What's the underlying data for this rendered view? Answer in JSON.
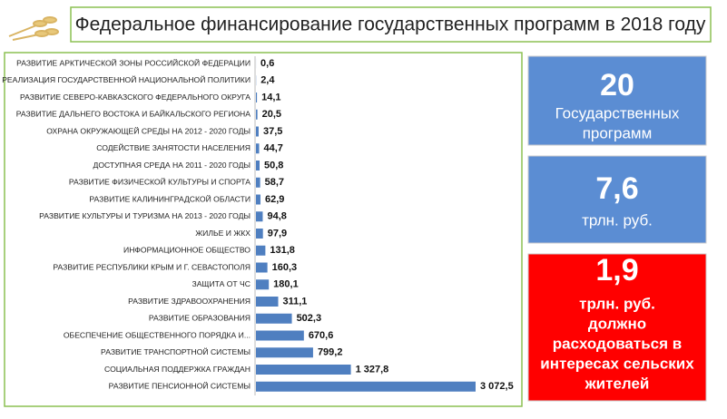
{
  "header": {
    "title": "Федеральное финансирование государственных программ в 2018 году"
  },
  "chart_data": {
    "type": "bar",
    "orientation": "horizontal",
    "color": "#4f7fc0",
    "categories": [
      "РАЗВИТИЕ АРКТИЧЕСКОЙ ЗОНЫ РОССИЙСКОЙ ФЕДЕРАЦИИ",
      "РЕАЛИЗАЦИЯ ГОСУДАРСТВЕННОЙ НАЦИОНАЛЬНОЙ ПОЛИТИКИ",
      "РАЗВИТИЕ СЕВЕРО-КАВКАЗСКОГО ФЕДЕРАЛЬНОГО ОКРУГА",
      "РАЗВИТИЕ ДАЛЬНЕГО ВОСТОКА И БАЙКАЛЬСКОГО РЕГИОНА",
      "ОХРАНА ОКРУЖАЮЩЕЙ СРЕДЫ НА 2012 - 2020 ГОДЫ",
      "СОДЕЙСТВИЕ ЗАНЯТОСТИ НАСЕЛЕНИЯ",
      "ДОСТУПНАЯ СРЕДА НА 2011 - 2020 ГОДЫ",
      "РАЗВИТИЕ ФИЗИЧЕСКОЙ КУЛЬТУРЫ И СПОРТА",
      "РАЗВИТИЕ КАЛИНИНГРАДСКОЙ ОБЛАСТИ",
      "РАЗВИТИЕ КУЛЬТУРЫ И ТУРИЗМА НА 2013 - 2020 ГОДЫ",
      "ЖИЛЬЕ И ЖКХ",
      "ИНФОРМАЦИОННОЕ ОБЩЕСТВО",
      "РАЗВИТИЕ РЕСПУБЛИКИ КРЫМ И Г. СЕВАСТОПОЛЯ",
      "ЗАЩИТА ОТ ЧС",
      "РАЗВИТИЕ ЗДРАВООХРАНЕНИЯ",
      "РАЗВИТИЕ ОБРАЗОВАНИЯ",
      "ОБЕСПЕЧЕНИЕ ОБЩЕСТВЕННОГО ПОРЯДКА И...",
      "РАЗВИТИЕ ТРАНСПОРТНОЙ СИСТЕМЫ",
      "СОЦИАЛЬНАЯ ПОДДЕРЖКА ГРАЖДАН",
      "РАЗВИТИЕ ПЕНСИОННОЙ СИСТЕМЫ"
    ],
    "values": [
      0.6,
      2.4,
      14.1,
      20.5,
      37.5,
      44.7,
      50.8,
      58.7,
      62.9,
      94.8,
      97.9,
      131.8,
      160.3,
      180.1,
      311.1,
      502.3,
      670.6,
      799.2,
      1327.8,
      3072.5
    ],
    "value_labels": [
      "0,6",
      "2,4",
      "14,1",
      "20,5",
      "37,5",
      "44,7",
      "50,8",
      "58,7",
      "62,9",
      "94,8",
      "97,9",
      "131,8",
      "160,3",
      "180,1",
      "311,1",
      "502,3",
      "670,6",
      "799,2",
      "1 327,8",
      "3 072,5"
    ]
  },
  "panels": [
    {
      "value": "20",
      "lines": [
        "Государственных",
        "программ"
      ],
      "color": "#5b8dd3"
    },
    {
      "value": "7,6",
      "lines": [
        "трлн. руб."
      ],
      "color": "#5b8dd3"
    },
    {
      "value": "1,9",
      "lines": [
        "трлн. руб.",
        "должно",
        "расходоваться в",
        "интересах сельских",
        "жителей"
      ],
      "color": "#ff0000"
    }
  ]
}
